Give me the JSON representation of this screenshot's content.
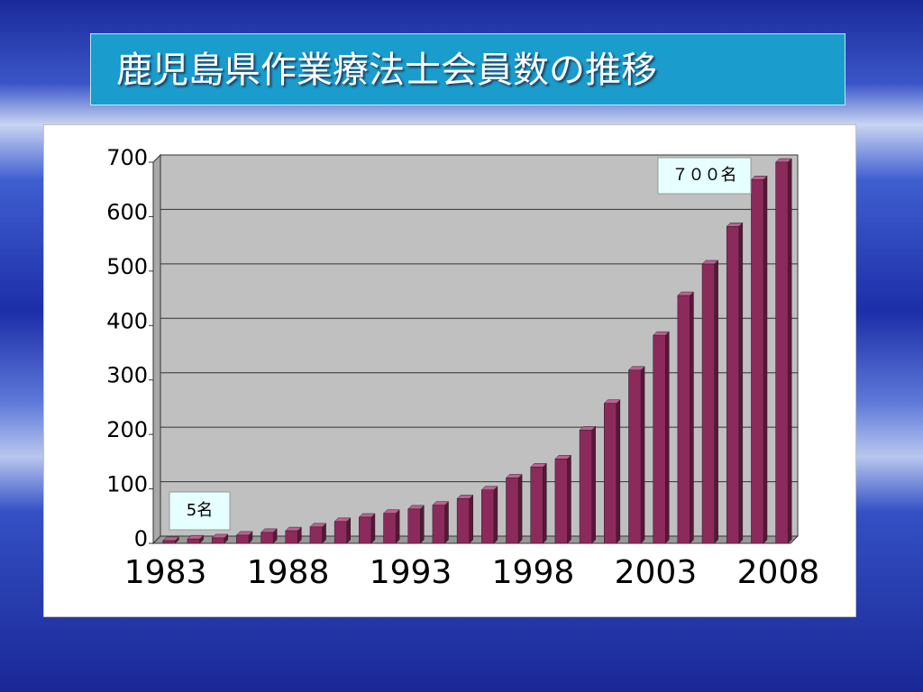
{
  "chart_data": {
    "type": "bar",
    "title": "鹿児島県作業療法士会員数の推移",
    "categories": [
      "1983",
      null,
      null,
      null,
      null,
      "1988",
      null,
      null,
      null,
      null,
      "1993",
      null,
      null,
      null,
      null,
      "1998",
      null,
      null,
      null,
      null,
      "2003",
      null,
      null,
      null,
      null,
      "2008"
    ],
    "values": [
      5,
      8,
      10,
      15,
      20,
      23,
      30,
      40,
      48,
      55,
      63,
      70,
      82,
      98,
      120,
      140,
      155,
      208,
      257,
      318,
      382,
      455,
      513,
      582,
      668,
      700
    ],
    "color": "#8c2a5c",
    "ylim": [
      0,
      700
    ],
    "yticks": [
      0,
      100,
      200,
      300,
      400,
      500,
      600,
      700
    ],
    "grid": true,
    "annotations": [
      "5名",
      "７００名"
    ]
  }
}
